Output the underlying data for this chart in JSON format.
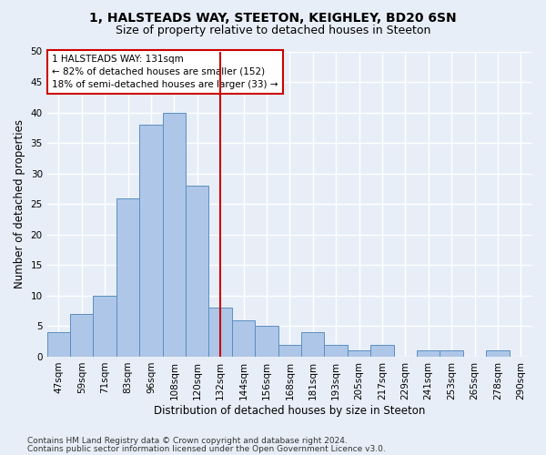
{
  "title1": "1, HALSTEADS WAY, STEETON, KEIGHLEY, BD20 6SN",
  "title2": "Size of property relative to detached houses in Steeton",
  "xlabel": "Distribution of detached houses by size in Steeton",
  "ylabel": "Number of detached properties",
  "bar_labels": [
    "47sqm",
    "59sqm",
    "71sqm",
    "83sqm",
    "96sqm",
    "108sqm",
    "120sqm",
    "132sqm",
    "144sqm",
    "156sqm",
    "168sqm",
    "181sqm",
    "193sqm",
    "205sqm",
    "217sqm",
    "229sqm",
    "241sqm",
    "253sqm",
    "265sqm",
    "278sqm",
    "290sqm"
  ],
  "bar_values": [
    4,
    7,
    10,
    26,
    38,
    40,
    28,
    8,
    6,
    5,
    2,
    4,
    2,
    1,
    2,
    0,
    1,
    1,
    0,
    1,
    0
  ],
  "bar_color": "#aec6e8",
  "bar_edge_color": "#5a8fc0",
  "vline_idx": 7,
  "vline_color": "#cc0000",
  "annotation_text": "1 HALSTEADS WAY: 131sqm\n← 82% of detached houses are smaller (152)\n18% of semi-detached houses are larger (33) →",
  "annotation_box_color": "#ffffff",
  "annotation_box_edge": "#cc0000",
  "ylim": [
    0,
    50
  ],
  "yticks": [
    0,
    5,
    10,
    15,
    20,
    25,
    30,
    35,
    40,
    45,
    50
  ],
  "footer1": "Contains HM Land Registry data © Crown copyright and database right 2024.",
  "footer2": "Contains public sector information licensed under the Open Government Licence v3.0.",
  "background_color": "#e8eef8",
  "plot_bg_color": "#e8eef8",
  "grid_color": "#ffffff",
  "title1_fontsize": 10,
  "title2_fontsize": 9,
  "xlabel_fontsize": 8.5,
  "ylabel_fontsize": 8.5,
  "tick_fontsize": 7.5,
  "footer_fontsize": 6.5
}
